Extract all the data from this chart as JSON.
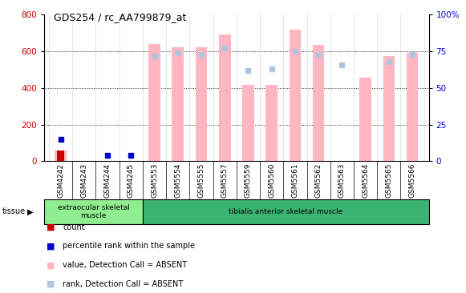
{
  "title": "GDS254 / rc_AA799879_at",
  "categories": [
    "GSM4242",
    "GSM4243",
    "GSM4244",
    "GSM4245",
    "GSM5553",
    "GSM5554",
    "GSM5555",
    "GSM5557",
    "GSM5559",
    "GSM5560",
    "GSM5561",
    "GSM5562",
    "GSM5563",
    "GSM5564",
    "GSM5565",
    "GSM5566"
  ],
  "absent_values": [
    60,
    0,
    0,
    0,
    640,
    620,
    620,
    690,
    415,
    415,
    720,
    635,
    0,
    455,
    575,
    590
  ],
  "absent_ranks_pct": [
    0,
    0,
    0,
    0,
    72,
    74,
    73,
    77,
    62,
    63,
    75,
    73,
    66,
    0,
    68,
    73
  ],
  "present_ranks_pct": [
    15,
    0,
    4,
    4,
    0,
    0,
    0,
    0,
    0,
    0,
    0,
    0,
    0,
    0,
    0,
    0
  ],
  "count_vals": [
    60,
    0,
    0,
    0,
    0,
    0,
    0,
    0,
    0,
    0,
    0,
    0,
    0,
    0,
    0,
    0
  ],
  "ylim_left": [
    0,
    800
  ],
  "ylim_right": [
    0,
    100
  ],
  "yticks_left": [
    0,
    200,
    400,
    600,
    800
  ],
  "yticks_right": [
    0,
    25,
    50,
    75,
    100
  ],
  "absent_bar_color": "#ffb6c1",
  "absent_rank_color": "#b0c4de",
  "count_bar_color": "#cc0000",
  "present_rank_color": "#0000cd",
  "tick_label_color_left": "#cc0000",
  "tick_label_color_right": "#0000cc",
  "tissue_group1_label": "extraocular skeletal\nmuscle",
  "tissue_group1_color": "#90ee90",
  "tissue_group1_n": 4,
  "tissue_group2_label": "tibialis anterior skeletal muscle",
  "tissue_group2_color": "#3cb371",
  "tissue_group2_n": 12,
  "legend_items": [
    {
      "label": "count",
      "color": "#cc0000"
    },
    {
      "label": "percentile rank within the sample",
      "color": "#0000cc"
    },
    {
      "label": "value, Detection Call = ABSENT",
      "color": "#ffb6c1"
    },
    {
      "label": "rank, Detection Call = ABSENT",
      "color": "#b0c4de"
    }
  ]
}
